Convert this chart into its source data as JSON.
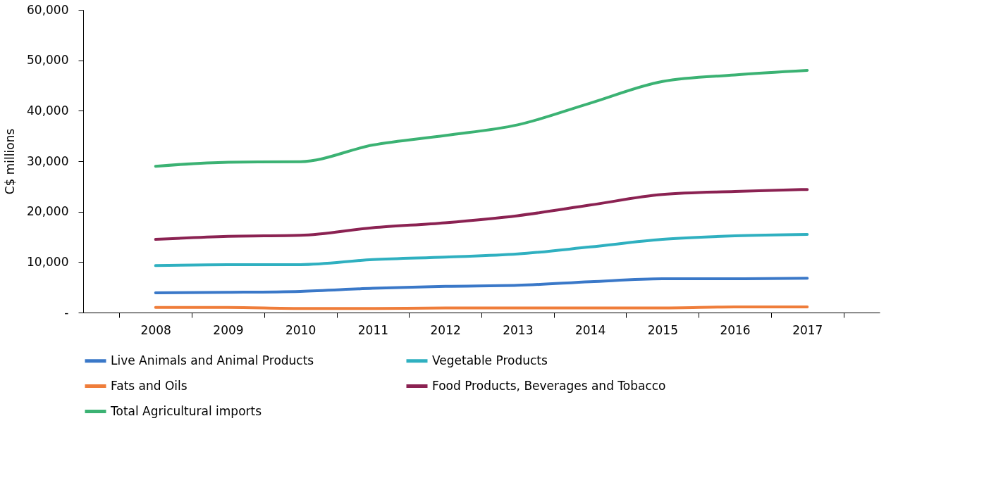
{
  "chart_data": {
    "type": "line",
    "ylabel": "C$ millions",
    "categories": [
      "2008",
      "2009",
      "2010",
      "2011",
      "2012",
      "2013",
      "2014",
      "2015",
      "2016",
      "2017"
    ],
    "ylim": [
      0,
      60000
    ],
    "yticks": [
      {
        "value": 0,
        "label": "-"
      },
      {
        "value": 10000,
        "label": "10,000"
      },
      {
        "value": 20000,
        "label": "20,000"
      },
      {
        "value": 30000,
        "label": "30,000"
      },
      {
        "value": 40000,
        "label": "40,000"
      },
      {
        "value": 50000,
        "label": "50,000"
      },
      {
        "value": 60000,
        "label": "60,000"
      }
    ],
    "grid": false,
    "legend": "bottom",
    "marker": "none",
    "line_style": "solid",
    "series": [
      {
        "name": "Live Animals and Animal Products",
        "color": "#3a78c8",
        "values": [
          3900,
          4000,
          4200,
          4800,
          5200,
          5400,
          6100,
          6700,
          6700,
          6800
        ]
      },
      {
        "name": "Vegetable Products",
        "color": "#2fb0c0",
        "values": [
          9300,
          9500,
          9500,
          10500,
          11000,
          11600,
          13000,
          14500,
          15200,
          15500
        ]
      },
      {
        "name": "Fats and Oils",
        "color": "#ef7d3a",
        "values": [
          1000,
          1000,
          800,
          800,
          900,
          900,
          900,
          900,
          1100,
          1100
        ]
      },
      {
        "name": "Food Products, Beverages and Tobacco",
        "color": "#8b2252",
        "values": [
          14500,
          15100,
          15300,
          16800,
          17800,
          19200,
          21300,
          23400,
          24000,
          24400
        ]
      },
      {
        "name": "Total Agricultural imports",
        "color": "#3bb273",
        "values": [
          29000,
          29800,
          29900,
          33200,
          35100,
          37200,
          41500,
          45800,
          47100,
          48000
        ]
      }
    ]
  }
}
